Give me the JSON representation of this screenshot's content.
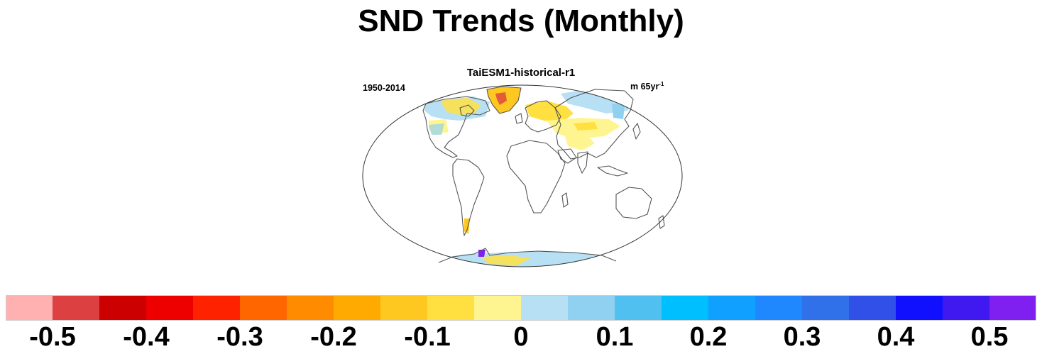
{
  "title": "SND Trends (Monthly)",
  "subtitle": "TaiESM1-historical-r1",
  "period": "1950-2014",
  "units": {
    "base": "m 65yr",
    "exponent": "-1"
  },
  "colorbar": {
    "colors": [
      "#ffb0b0",
      "#dd4040",
      "#cc0000",
      "#ee0000",
      "#ff2200",
      "#ff6600",
      "#ff8c00",
      "#ffaa00",
      "#ffc820",
      "#ffe040",
      "#fff590",
      "#b8e0f4",
      "#90d0f0",
      "#50c0f0",
      "#00bfff",
      "#10a0ff",
      "#2088ff",
      "#3070e8",
      "#3050e8",
      "#1010ff",
      "#4018f0",
      "#8020f0"
    ],
    "tick_labels": [
      "-0.5",
      "-0.4",
      "-0.3",
      "-0.2",
      "-0.1",
      "0",
      "0.1",
      "0.2",
      "0.3",
      "0.4",
      "0.5"
    ]
  },
  "map": {
    "projection": "robinson",
    "coastline_color": "#555555",
    "background": "#ffffff"
  }
}
